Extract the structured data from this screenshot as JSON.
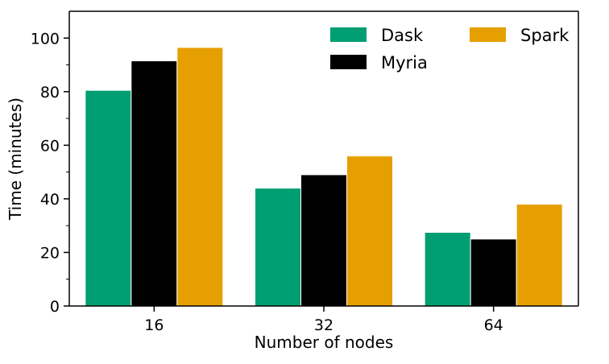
{
  "chart_data": {
    "type": "bar",
    "title": "",
    "xlabel": "Number of nodes",
    "ylabel": "Time (minutes)",
    "categories": [
      "16",
      "32",
      "64"
    ],
    "series": [
      {
        "name": "Dask",
        "color": "#009e73",
        "values": [
          80.5,
          44,
          27.5
        ]
      },
      {
        "name": "Myria",
        "color": "#000000",
        "values": [
          91.5,
          49,
          25
        ]
      },
      {
        "name": "Spark",
        "color": "#e69f00",
        "values": [
          96.5,
          56,
          38
        ]
      }
    ],
    "ylim": [
      0,
      110
    ],
    "yticks": [
      0,
      20,
      40,
      60,
      80,
      100
    ],
    "grid": false,
    "legend_position": "top-right"
  }
}
